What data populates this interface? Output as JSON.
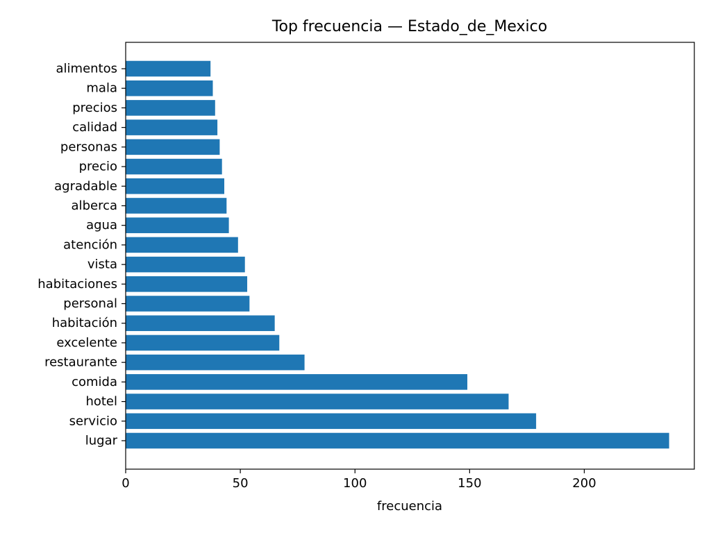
{
  "chart_data": {
    "type": "bar",
    "orientation": "horizontal",
    "title": "Top frecuencia — Estado_de_Mexico",
    "xlabel": "frecuencia",
    "ylabel": "",
    "xlim": [
      0,
      248
    ],
    "xticks": [
      0,
      50,
      100,
      150,
      200
    ],
    "grid": false,
    "legend": "none",
    "bar_color": "#1f77b4",
    "categories": [
      "lugar",
      "servicio",
      "hotel",
      "comida",
      "restaurante",
      "excelente",
      "habitación",
      "personal",
      "habitaciones",
      "vista",
      "atención",
      "agua",
      "alberca",
      "agradable",
      "precio",
      "personas",
      "calidad",
      "precios",
      "mala",
      "alimentos"
    ],
    "values": [
      237,
      179,
      167,
      149,
      78,
      67,
      65,
      54,
      53,
      52,
      49,
      45,
      44,
      43,
      42,
      41,
      40,
      39,
      38,
      37
    ]
  }
}
